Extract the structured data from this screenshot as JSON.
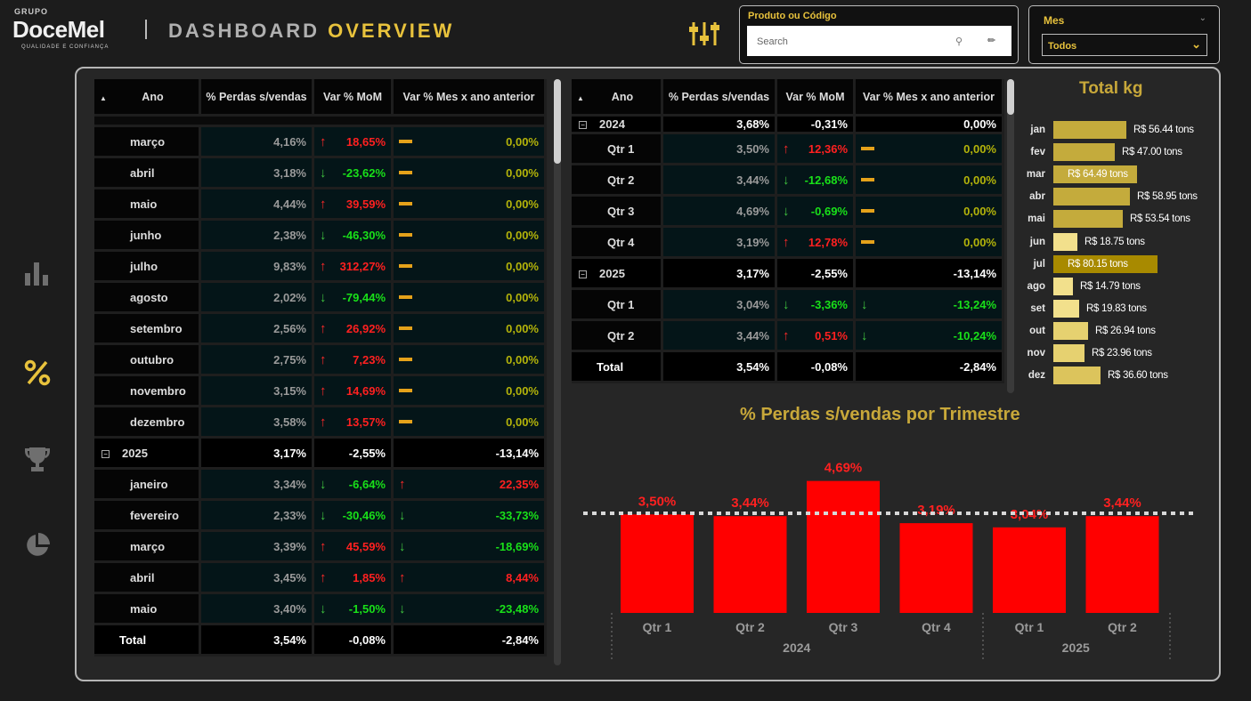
{
  "header": {
    "logo_group": "GRUPO",
    "logo_brand": "DoceMel",
    "logo_tagline": "QUALIDADE E CONFIANÇA",
    "title_plain": "DASHBOARD",
    "title_accent": "OVERVIEW",
    "accent_color": "#e8c23c"
  },
  "filters": {
    "produto_label": "Produto ou Código",
    "search_placeholder": "Search",
    "mes_label": "Mes",
    "mes_value": "Todos"
  },
  "nav": [
    "bar-chart-icon",
    "percent-icon",
    "trophy-icon",
    "pie-chart-icon"
  ],
  "table_left": {
    "headers": [
      "Ano",
      "% Perdas s/vendas",
      "Var % MoM",
      "Var % Mes x ano anterior"
    ],
    "rows": [
      {
        "type": "month",
        "label": "março",
        "perdas": "4,16%",
        "mom": "18,65%",
        "mom_dir": "up",
        "yoy": "0,00%",
        "yoy_dir": "flat"
      },
      {
        "type": "month",
        "label": "abril",
        "perdas": "3,18%",
        "mom": "-23,62%",
        "mom_dir": "down",
        "yoy": "0,00%",
        "yoy_dir": "flat"
      },
      {
        "type": "month",
        "label": "maio",
        "perdas": "4,44%",
        "mom": "39,59%",
        "mom_dir": "up",
        "yoy": "0,00%",
        "yoy_dir": "flat"
      },
      {
        "type": "month",
        "label": "junho",
        "perdas": "2,38%",
        "mom": "-46,30%",
        "mom_dir": "down",
        "yoy": "0,00%",
        "yoy_dir": "flat"
      },
      {
        "type": "month",
        "label": "julho",
        "perdas": "9,83%",
        "mom": "312,27%",
        "mom_dir": "up",
        "yoy": "0,00%",
        "yoy_dir": "flat"
      },
      {
        "type": "month",
        "label": "agosto",
        "perdas": "2,02%",
        "mom": "-79,44%",
        "mom_dir": "down",
        "yoy": "0,00%",
        "yoy_dir": "flat"
      },
      {
        "type": "month",
        "label": "setembro",
        "perdas": "2,56%",
        "mom": "26,92%",
        "mom_dir": "up",
        "yoy": "0,00%",
        "yoy_dir": "flat"
      },
      {
        "type": "month",
        "label": "outubro",
        "perdas": "2,75%",
        "mom": "7,23%",
        "mom_dir": "up",
        "yoy": "0,00%",
        "yoy_dir": "flat"
      },
      {
        "type": "month",
        "label": "novembro",
        "perdas": "3,15%",
        "mom": "14,69%",
        "mom_dir": "up",
        "yoy": "0,00%",
        "yoy_dir": "flat"
      },
      {
        "type": "month",
        "label": "dezembro",
        "perdas": "3,58%",
        "mom": "13,57%",
        "mom_dir": "up",
        "yoy": "0,00%",
        "yoy_dir": "flat"
      },
      {
        "type": "year",
        "label": "2025",
        "perdas": "3,17%",
        "mom": "-2,55%",
        "mom_dir": "none",
        "yoy": "-13,14%",
        "yoy_dir": "none"
      },
      {
        "type": "month",
        "label": "janeiro",
        "perdas": "3,34%",
        "mom": "-6,64%",
        "mom_dir": "down",
        "yoy": "22,35%",
        "yoy_dir": "up"
      },
      {
        "type": "month",
        "label": "fevereiro",
        "perdas": "2,33%",
        "mom": "-30,46%",
        "mom_dir": "down",
        "yoy": "-33,73%",
        "yoy_dir": "down"
      },
      {
        "type": "month",
        "label": "março",
        "perdas": "3,39%",
        "mom": "45,59%",
        "mom_dir": "up",
        "yoy": "-18,69%",
        "yoy_dir": "down"
      },
      {
        "type": "month",
        "label": "abril",
        "perdas": "3,45%",
        "mom": "1,85%",
        "mom_dir": "up",
        "yoy": "8,44%",
        "yoy_dir": "up"
      },
      {
        "type": "month",
        "label": "maio",
        "perdas": "3,40%",
        "mom": "-1,50%",
        "mom_dir": "down",
        "yoy": "-23,48%",
        "yoy_dir": "down"
      }
    ],
    "total": {
      "label": "Total",
      "perdas": "3,54%",
      "mom": "-0,08%",
      "yoy": "-2,84%"
    }
  },
  "table_right": {
    "headers": [
      "Ano",
      "% Perdas s/vendas",
      "Var % MoM",
      "Var % Mes x ano anterior"
    ],
    "rows": [
      {
        "type": "year",
        "label": "2024",
        "perdas": "3,68%",
        "mom": "-0,31%",
        "mom_dir": "none",
        "yoy": "0,00%",
        "yoy_dir": "none"
      },
      {
        "type": "month",
        "label": "Qtr 1",
        "perdas": "3,50%",
        "mom": "12,36%",
        "mom_dir": "up",
        "yoy": "0,00%",
        "yoy_dir": "flat"
      },
      {
        "type": "month",
        "label": "Qtr 2",
        "perdas": "3,44%",
        "mom": "-12,68%",
        "mom_dir": "down",
        "yoy": "0,00%",
        "yoy_dir": "flat"
      },
      {
        "type": "month",
        "label": "Qtr 3",
        "perdas": "4,69%",
        "mom": "-0,69%",
        "mom_dir": "down",
        "yoy": "0,00%",
        "yoy_dir": "flat"
      },
      {
        "type": "month",
        "label": "Qtr 4",
        "perdas": "3,19%",
        "mom": "12,78%",
        "mom_dir": "up",
        "yoy": "0,00%",
        "yoy_dir": "flat"
      },
      {
        "type": "year",
        "label": "2025",
        "perdas": "3,17%",
        "mom": "-2,55%",
        "mom_dir": "none",
        "yoy": "-13,14%",
        "yoy_dir": "none"
      },
      {
        "type": "month",
        "label": "Qtr 1",
        "perdas": "3,04%",
        "mom": "-3,36%",
        "mom_dir": "down",
        "yoy": "-13,24%",
        "yoy_dir": "down"
      },
      {
        "type": "month",
        "label": "Qtr 2",
        "perdas": "3,44%",
        "mom": "0,51%",
        "mom_dir": "up",
        "yoy": "-10,24%",
        "yoy_dir": "down"
      }
    ],
    "total": {
      "label": "Total",
      "perdas": "3,54%",
      "mom": "-0,08%",
      "yoy": "-2,84%"
    }
  },
  "total_kg": {
    "title": "Total kg",
    "max_value": 80.15,
    "items": [
      {
        "month": "jan",
        "value": 56.44,
        "label": "R$ 56.44 tons",
        "color": "#c4ab3c"
      },
      {
        "month": "fev",
        "value": 47.0,
        "label": "R$ 47.00 tons",
        "color": "#c4ab3c"
      },
      {
        "month": "mar",
        "value": 64.49,
        "label": "R$ 64.49 tons",
        "color": "#c4ab3c"
      },
      {
        "month": "abr",
        "value": 58.95,
        "label": "R$ 58.95 tons",
        "color": "#c4ab3c"
      },
      {
        "month": "mai",
        "value": 53.54,
        "label": "R$ 53.54 tons",
        "color": "#c4ab3c"
      },
      {
        "month": "jun",
        "value": 18.75,
        "label": "R$ 18.75 tons",
        "color": "#f2e08c"
      },
      {
        "month": "jul",
        "value": 80.15,
        "label": "R$ 80.15 tons",
        "color": "#a88a00"
      },
      {
        "month": "ago",
        "value": 14.79,
        "label": "R$ 14.79 tons",
        "color": "#f2e08c"
      },
      {
        "month": "set",
        "value": 19.83,
        "label": "R$ 19.83 tons",
        "color": "#f2e08c"
      },
      {
        "month": "out",
        "value": 26.94,
        "label": "R$ 26.94 tons",
        "color": "#e6d170"
      },
      {
        "month": "nov",
        "value": 23.96,
        "label": "R$ 23.96 tons",
        "color": "#e6d170"
      },
      {
        "month": "dez",
        "value": 36.6,
        "label": "R$ 36.60 tons",
        "color": "#dcc45c"
      }
    ]
  },
  "chart_data": {
    "type": "bar",
    "title": "% Perdas s/vendas por Trimestre",
    "categories": [
      "Qtr 1",
      "Qtr 2",
      "Qtr 3",
      "Qtr 4",
      "Qtr 1",
      "Qtr 2"
    ],
    "groups": [
      {
        "label": "2024",
        "span": 4
      },
      {
        "label": "2025",
        "span": 2
      }
    ],
    "values": [
      3.5,
      3.44,
      4.69,
      3.19,
      3.04,
      3.44
    ],
    "value_labels": [
      "3,50%",
      "3,44%",
      "4,69%",
      "3,19%",
      "3,04%",
      "3,44%"
    ],
    "reference_line": 3.54,
    "ylim": [
      0,
      4.9
    ],
    "bar_color": "#ff0000",
    "label_color": "#ff2020"
  }
}
